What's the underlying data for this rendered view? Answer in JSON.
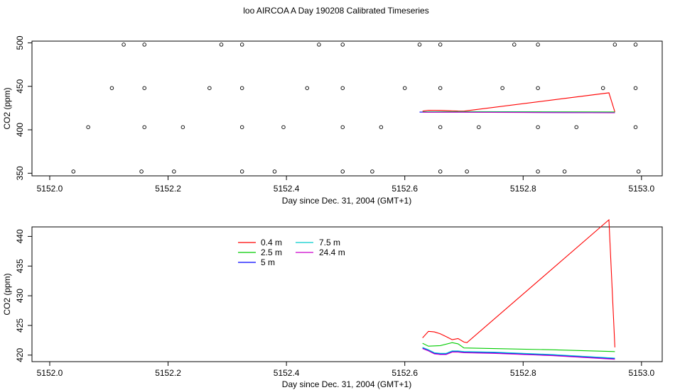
{
  "title": "loo AIRCOA A  Day 190208  Calibrated Timeseries",
  "chart_data": [
    {
      "type": "scatter",
      "xlabel": "Day since Dec. 31, 2004 (GMT+1)",
      "ylabel": "CO2 (ppm)",
      "xlim": [
        5151.97,
        5153.035
      ],
      "ylim": [
        347,
        502
      ],
      "x_ticks": [
        "5152.0",
        "5152.2",
        "5152.4",
        "5152.6",
        "5152.8",
        "5153.0"
      ],
      "y_ticks": [
        "350",
        "400",
        "450",
        "500"
      ],
      "points": [
        [
          5152.04,
          352
        ],
        [
          5152.155,
          352
        ],
        [
          5152.21,
          352
        ],
        [
          5152.325,
          352
        ],
        [
          5152.38,
          352
        ],
        [
          5152.495,
          352
        ],
        [
          5152.545,
          352
        ],
        [
          5152.66,
          352
        ],
        [
          5152.705,
          352
        ],
        [
          5152.825,
          352
        ],
        [
          5152.87,
          352
        ],
        [
          5152.995,
          352
        ],
        [
          5152.065,
          403
        ],
        [
          5152.16,
          403
        ],
        [
          5152.225,
          403
        ],
        [
          5152.325,
          403
        ],
        [
          5152.395,
          403
        ],
        [
          5152.495,
          403
        ],
        [
          5152.56,
          403
        ],
        [
          5152.66,
          403
        ],
        [
          5152.725,
          403
        ],
        [
          5152.825,
          403
        ],
        [
          5152.89,
          403
        ],
        [
          5152.99,
          403
        ],
        [
          5152.105,
          448
        ],
        [
          5152.16,
          448
        ],
        [
          5152.27,
          448
        ],
        [
          5152.325,
          448
        ],
        [
          5152.435,
          448
        ],
        [
          5152.495,
          448
        ],
        [
          5152.6,
          448
        ],
        [
          5152.66,
          448
        ],
        [
          5152.765,
          448
        ],
        [
          5152.825,
          448
        ],
        [
          5152.935,
          448
        ],
        [
          5152.99,
          448
        ],
        [
          5152.125,
          498
        ],
        [
          5152.16,
          498
        ],
        [
          5152.29,
          498
        ],
        [
          5152.325,
          498
        ],
        [
          5152.455,
          498
        ],
        [
          5152.495,
          498
        ],
        [
          5152.625,
          498
        ],
        [
          5152.66,
          498
        ],
        [
          5152.785,
          498
        ],
        [
          5152.825,
          498
        ],
        [
          5152.955,
          498
        ],
        [
          5152.99,
          498
        ]
      ],
      "series": [
        {
          "name": "0.4 m",
          "color": "#ff0000",
          "x": [
            5152.63,
            5152.64,
            5152.66,
            5152.69,
            5152.7,
            5152.945,
            5152.955
          ],
          "y": [
            421.5,
            422.5,
            422.3,
            421.6,
            421.5,
            442.5,
            420.5
          ]
        },
        {
          "name": "2.5 m",
          "color": "#00cc00",
          "x": [
            5152.63,
            5152.7,
            5152.955
          ],
          "y": [
            420.8,
            420.9,
            420.5
          ]
        },
        {
          "name": "5 m",
          "color": "#0000ff",
          "x": [
            5152.625,
            5152.7,
            5152.955
          ],
          "y": [
            420.3,
            420.3,
            419.6
          ]
        },
        {
          "name": "7.5 m",
          "color": "#00cccc",
          "x": [
            5152.63,
            5152.7,
            5152.955
          ],
          "y": [
            420.5,
            420.5,
            419.8
          ]
        },
        {
          "name": "24.4 m",
          "color": "#cc00cc",
          "x": [
            5152.63,
            5152.7,
            5152.955
          ],
          "y": [
            420.2,
            420.2,
            419.5
          ]
        }
      ]
    },
    {
      "type": "line",
      "xlabel": "Day since Dec. 31, 2004 (GMT+1)",
      "ylabel": "CO2 (ppm)",
      "xlim": [
        5151.97,
        5153.035
      ],
      "ylim": [
        418.9,
        441.6
      ],
      "x_ticks": [
        "5152.0",
        "5152.2",
        "5152.4",
        "5152.6",
        "5152.8",
        "5153.0"
      ],
      "y_ticks": [
        "420",
        "425",
        "430",
        "435",
        "440"
      ],
      "legend": "top-left, two columns",
      "series": [
        {
          "name": "0.4 m",
          "color": "#ff0000",
          "x": [
            5152.63,
            5152.64,
            5152.65,
            5152.66,
            5152.67,
            5152.68,
            5152.69,
            5152.7,
            5152.705,
            5152.945,
            5152.955
          ],
          "y": [
            422.9,
            424.0,
            423.9,
            423.6,
            423.1,
            422.6,
            422.8,
            422.2,
            422.1,
            442.8,
            421.3
          ]
        },
        {
          "name": "2.5 m",
          "color": "#00cc00",
          "x": [
            5152.63,
            5152.64,
            5152.66,
            5152.68,
            5152.69,
            5152.7,
            5152.75,
            5152.85,
            5152.955
          ],
          "y": [
            422.0,
            421.5,
            421.6,
            422.1,
            421.9,
            421.2,
            421.1,
            420.9,
            420.6
          ]
        },
        {
          "name": "5 m",
          "color": "#0000ff",
          "x": [
            5152.63,
            5152.64,
            5152.65,
            5152.66,
            5152.67,
            5152.68,
            5152.69,
            5152.7,
            5152.75,
            5152.85,
            5152.955
          ],
          "y": [
            421.2,
            420.8,
            420.3,
            420.2,
            420.2,
            420.6,
            420.6,
            420.5,
            420.4,
            420.0,
            419.4
          ]
        },
        {
          "name": "7.5 m",
          "color": "#00cccc",
          "x": [
            5152.63,
            5152.64,
            5152.65,
            5152.66,
            5152.67,
            5152.68,
            5152.69,
            5152.7,
            5152.75,
            5152.85,
            5152.955
          ],
          "y": [
            421.3,
            420.9,
            420.4,
            420.3,
            420.3,
            420.7,
            420.7,
            420.6,
            420.5,
            420.1,
            419.5
          ]
        },
        {
          "name": "24.4 m",
          "color": "#cc00cc",
          "x": [
            5152.63,
            5152.64,
            5152.65,
            5152.66,
            5152.67,
            5152.68,
            5152.69,
            5152.7,
            5152.75,
            5152.85,
            5152.955
          ],
          "y": [
            421.1,
            420.7,
            420.2,
            420.1,
            420.1,
            420.5,
            420.5,
            420.4,
            420.3,
            419.9,
            419.3
          ]
        }
      ]
    }
  ]
}
